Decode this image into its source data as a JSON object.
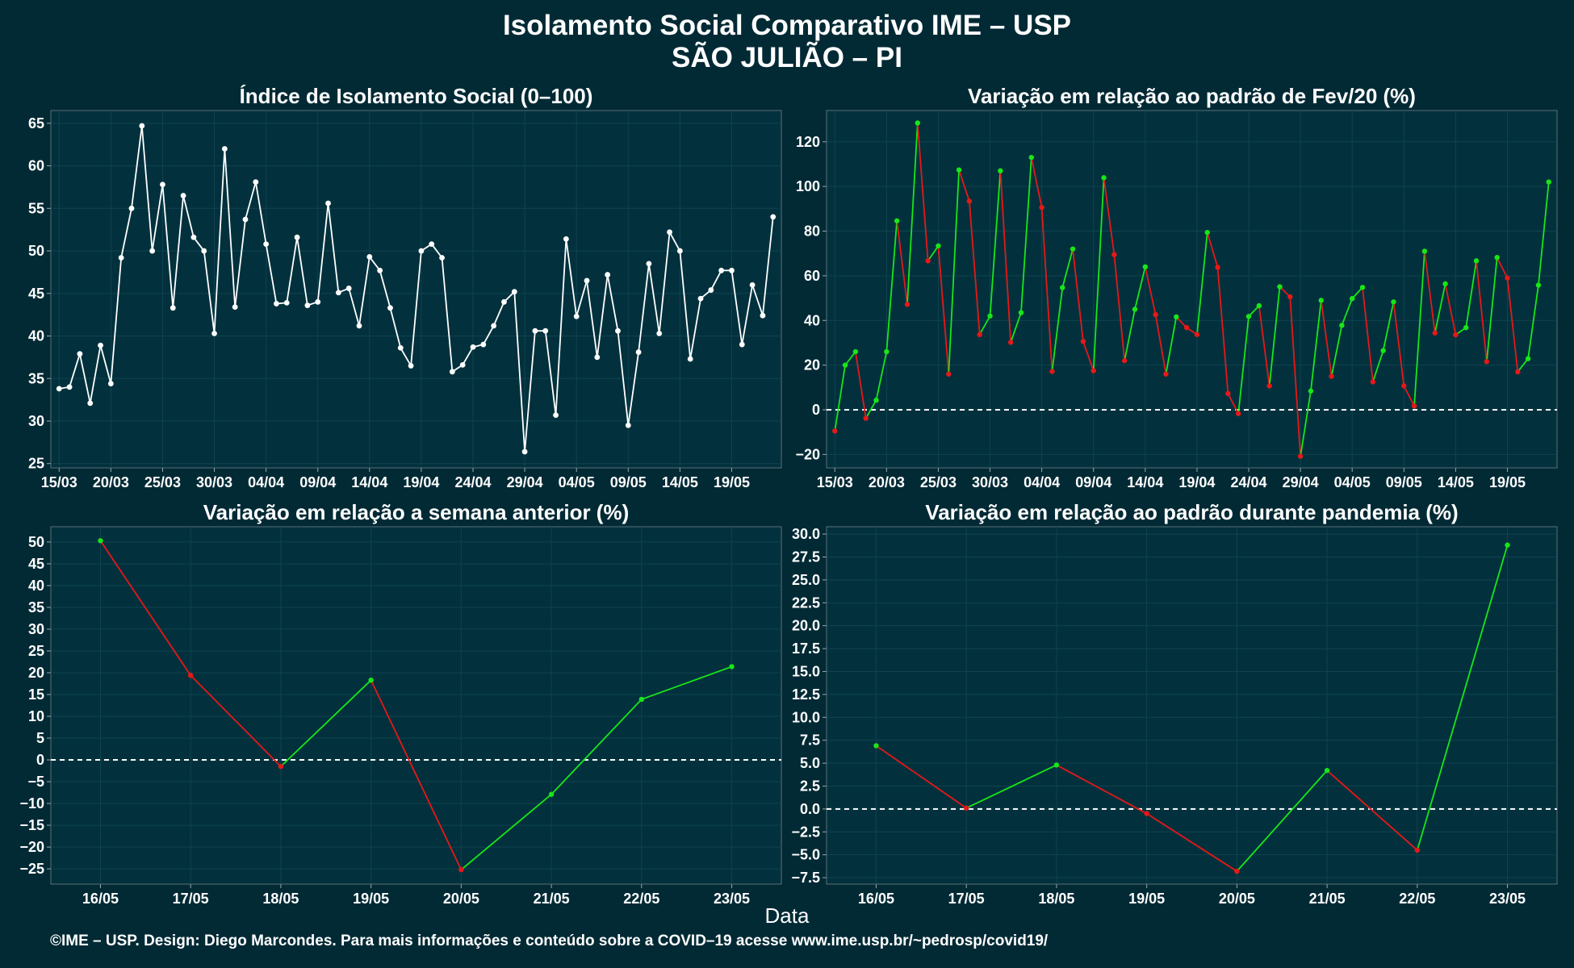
{
  "title": "Isolamento Social Comparativo IME – USP",
  "subtitle": "SÃO JULIÃO – PI",
  "xlabel": "Data",
  "footer": "©IME – USP. Design: Diego Marcondes. Para mais informações e conteúdo sobre a COVID–19 acesse www.ime.usp.br/~pedrosp/covid19/",
  "colors": {
    "background": "#022a35",
    "panel": "#02313d",
    "positive": "#18e618",
    "negative": "#e61818",
    "isolation_line": "#ffffff"
  },
  "chart_data": [
    {
      "type": "line",
      "title": "Índice de Isolamento Social (0–100)",
      "tick_labels": [
        "15/03",
        "20/03",
        "25/03",
        "30/03",
        "04/04",
        "09/04",
        "14/04",
        "19/04",
        "24/04",
        "29/04",
        "04/05",
        "09/05",
        "14/05",
        "19/05"
      ],
      "tick_positions": [
        0,
        5,
        10,
        15,
        20,
        25,
        30,
        35,
        40,
        45,
        50,
        55,
        60,
        65
      ],
      "ylim": [
        24.5,
        66.5
      ],
      "yticks": [
        25,
        30,
        35,
        40,
        45,
        50,
        55,
        60,
        65
      ],
      "grid": true,
      "series": [
        {
          "values": [
            33.8,
            34.0,
            37.9,
            32.1,
            38.9,
            34.4,
            49.2,
            55.0,
            64.7,
            50.0,
            57.8,
            43.3,
            56.5,
            51.6,
            50.0,
            40.3,
            62.0,
            43.4,
            53.7,
            58.1,
            50.8,
            43.8,
            43.9,
            51.6,
            43.6,
            44.0,
            55.6,
            45.1,
            45.6,
            41.2,
            49.3,
            47.7,
            43.3,
            38.6,
            36.5,
            50.0,
            50.8,
            49.2,
            35.8,
            36.6,
            38.7,
            39.0,
            41.2,
            44.0,
            45.2,
            26.4,
            40.6,
            40.6,
            30.7,
            51.4,
            42.3,
            46.5,
            37.5,
            47.2,
            40.6,
            29.5,
            38.1,
            48.5,
            40.3,
            52.2,
            50.0,
            37.3,
            44.4,
            45.4,
            47.7,
            47.7,
            39.0,
            46.0,
            42.4,
            54.0
          ]
        }
      ]
    },
    {
      "type": "line",
      "title": "Variação em relação ao padrão de Fev/20 (%)",
      "tick_labels": [
        "15/03",
        "20/03",
        "25/03",
        "30/03",
        "04/04",
        "09/04",
        "14/04",
        "19/04",
        "24/04",
        "29/04",
        "04/05",
        "09/05",
        "14/05",
        "19/05"
      ],
      "tick_positions": [
        0,
        5,
        10,
        15,
        20,
        25,
        30,
        35,
        40,
        45,
        50,
        55,
        60,
        65
      ],
      "ylim": [
        -26,
        134
      ],
      "yticks": [
        -20,
        0,
        20,
        40,
        60,
        80,
        100,
        120
      ],
      "reference_line": 0,
      "grid": true,
      "series": [
        {
          "values": [
            -9.5,
            20.0,
            26.0,
            -3.8,
            4.3,
            26.0,
            84.6,
            47.2,
            128.4,
            66.7,
            73.4,
            16.0,
            107.4,
            93.4,
            33.7,
            42.0,
            107.0,
            30.2,
            43.5,
            113.0,
            90.6,
            17.2,
            54.7,
            72.0,
            30.6,
            17.5,
            103.9,
            69.5,
            22.0,
            45.0,
            64.0,
            42.6,
            16.0,
            41.6,
            36.8,
            33.7,
            79.4,
            63.8,
            7.3,
            -1.7,
            41.8,
            46.6,
            10.7,
            55.1,
            50.6,
            -20.8,
            8.4,
            49.0,
            15.0,
            37.8,
            49.8,
            54.8,
            12.5,
            26.5,
            48.3,
            10.7,
            1.7,
            71.0,
            34.4,
            56.4,
            33.6,
            36.8,
            66.7,
            21.6,
            68.2,
            59.0,
            17.0,
            22.9,
            55.8,
            102.0
          ]
        }
      ]
    },
    {
      "type": "line",
      "title": "Variação em relação a semana anterior (%)",
      "categories": [
        "16/05",
        "17/05",
        "18/05",
        "19/05",
        "20/05",
        "21/05",
        "22/05",
        "23/05"
      ],
      "ylim": [
        -28.5,
        53.5
      ],
      "yticks": [
        -25,
        -20,
        -15,
        -10,
        -5,
        0,
        5,
        10,
        15,
        20,
        25,
        30,
        35,
        40,
        45,
        50
      ],
      "reference_line": 0,
      "grid": true,
      "series": [
        {
          "values": [
            50.3,
            19.4,
            -1.5,
            18.3,
            -25.2,
            -7.9,
            13.9,
            21.4
          ]
        }
      ]
    },
    {
      "type": "line",
      "title": "Variação em relação ao padrão durante pandemia (%)",
      "categories": [
        "16/05",
        "17/05",
        "18/05",
        "19/05",
        "20/05",
        "21/05",
        "22/05",
        "23/05"
      ],
      "ylim": [
        -8.2,
        30.8
      ],
      "yticks": [
        -7.5,
        -5.0,
        -2.5,
        0.0,
        2.5,
        5.0,
        7.5,
        10.0,
        12.5,
        15.0,
        17.5,
        20.0,
        22.5,
        25.0,
        27.5,
        30.0
      ],
      "reference_line": 0,
      "grid": true,
      "series": [
        {
          "values": [
            6.9,
            0.1,
            4.8,
            -0.5,
            -6.8,
            4.2,
            -4.5,
            28.8
          ]
        }
      ]
    }
  ]
}
